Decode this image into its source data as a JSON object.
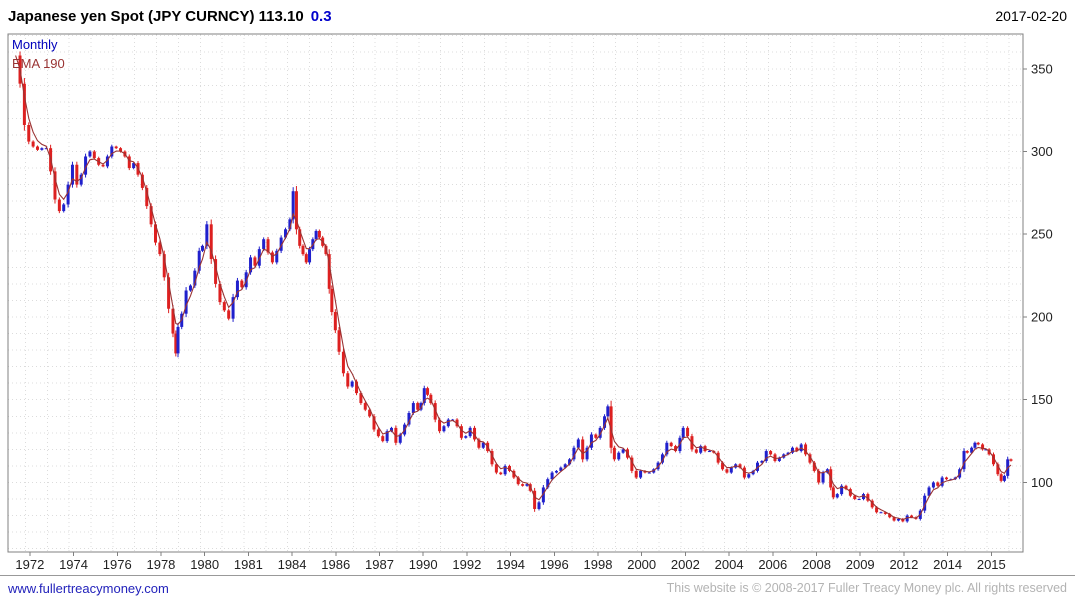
{
  "header": {
    "title": "Japanese yen Spot (JPY CURNCY) 113.10",
    "change": "0.3",
    "date": "2017-02-20"
  },
  "chart": {
    "timeframe_label": "Monthly",
    "ema_label": "EMA 190"
  },
  "footer": {
    "website": "www.fullertreacymoney.com",
    "copyright": "This website is © 2008-2017 Fuller Treacy Money plc. All rights reserved"
  },
  "chart_data": {
    "type": "candlestick",
    "title": "Japanese yen Spot (JPY CURNCY)",
    "timeframe": "Monthly",
    "last_price": 113.1,
    "change": 0.3,
    "as_of_date": "2017-02-20",
    "overlay": "EMA 190",
    "y_ticks": [
      100,
      150,
      200,
      250,
      300,
      350
    ],
    "ylim": [
      58,
      371
    ],
    "xlim_years": [
      1971.2,
      2017.65
    ],
    "x_axis": {
      "first_tick_year": 1972.2,
      "tick_interval_years": 2,
      "labels": [
        "1972",
        "1974",
        "1976",
        "1978",
        "1980",
        "1981",
        "1984",
        "1986",
        "1987",
        "1990",
        "1992",
        "1994",
        "1996",
        "1998",
        "2000",
        "2002",
        "2004",
        "2006",
        "2008",
        "2009",
        "2012",
        "2014",
        "2015"
      ]
    },
    "grid": {
      "h_step": 10,
      "v_step_years": 1
    },
    "colors": {
      "up": "#2020cc",
      "down": "#dd2020",
      "ema": "#993333",
      "border": "#808080",
      "grid": "#dcdcdc",
      "tick_text": "#222222"
    },
    "ema_tau_years": 0.3,
    "series": [
      {
        "name": "JPY spot (yen per USD), monthly",
        "style": "candle",
        "points": [
          [
            1971.55,
            358
          ],
          [
            1971.75,
            341
          ],
          [
            1971.95,
            316
          ],
          [
            1972.15,
            306
          ],
          [
            1972.35,
            303
          ],
          [
            1972.55,
            301
          ],
          [
            1972.75,
            302
          ],
          [
            1972.95,
            302
          ],
          [
            1973.15,
            288
          ],
          [
            1973.35,
            271
          ],
          [
            1973.55,
            264
          ],
          [
            1973.75,
            268
          ],
          [
            1973.95,
            280
          ],
          [
            1974.15,
            292
          ],
          [
            1974.35,
            280
          ],
          [
            1974.55,
            286
          ],
          [
            1974.75,
            297
          ],
          [
            1974.95,
            300
          ],
          [
            1975.15,
            296
          ],
          [
            1975.35,
            292
          ],
          [
            1975.55,
            291
          ],
          [
            1975.75,
            297
          ],
          [
            1975.95,
            303
          ],
          [
            1976.15,
            302
          ],
          [
            1976.35,
            300
          ],
          [
            1976.55,
            297
          ],
          [
            1976.75,
            290
          ],
          [
            1976.95,
            293
          ],
          [
            1977.15,
            286
          ],
          [
            1977.35,
            278
          ],
          [
            1977.55,
            267
          ],
          [
            1977.75,
            256
          ],
          [
            1977.95,
            245
          ],
          [
            1978.15,
            238
          ],
          [
            1978.35,
            224
          ],
          [
            1978.55,
            205
          ],
          [
            1978.75,
            190
          ],
          [
            1978.88,
            178
          ],
          [
            1978.98,
            194
          ],
          [
            1979.15,
            202
          ],
          [
            1979.35,
            216
          ],
          [
            1979.55,
            219
          ],
          [
            1979.75,
            228
          ],
          [
            1979.95,
            240
          ],
          [
            1980.1,
            243
          ],
          [
            1980.3,
            256
          ],
          [
            1980.5,
            235
          ],
          [
            1980.7,
            220
          ],
          [
            1980.9,
            209
          ],
          [
            1981.1,
            204
          ],
          [
            1981.3,
            199
          ],
          [
            1981.5,
            212
          ],
          [
            1981.7,
            222
          ],
          [
            1981.9,
            218
          ],
          [
            1982.1,
            227
          ],
          [
            1982.3,
            236
          ],
          [
            1982.5,
            231
          ],
          [
            1982.7,
            241
          ],
          [
            1982.9,
            247
          ],
          [
            1983.1,
            239
          ],
          [
            1983.3,
            233
          ],
          [
            1983.5,
            240
          ],
          [
            1983.7,
            248
          ],
          [
            1983.9,
            253
          ],
          [
            1984.1,
            259
          ],
          [
            1984.25,
            276
          ],
          [
            1984.4,
            253
          ],
          [
            1984.55,
            243
          ],
          [
            1984.7,
            238
          ],
          [
            1984.85,
            233
          ],
          [
            1985.0,
            241
          ],
          [
            1985.15,
            247
          ],
          [
            1985.3,
            252
          ],
          [
            1985.45,
            248
          ],
          [
            1985.6,
            243
          ],
          [
            1985.75,
            238
          ],
          [
            1985.9,
            217
          ],
          [
            1986.02,
            203
          ],
          [
            1986.18,
            192
          ],
          [
            1986.35,
            179
          ],
          [
            1986.55,
            166
          ],
          [
            1986.75,
            158
          ],
          [
            1986.95,
            161
          ],
          [
            1987.15,
            154
          ],
          [
            1987.35,
            148
          ],
          [
            1987.55,
            144
          ],
          [
            1987.75,
            140
          ],
          [
            1987.95,
            132
          ],
          [
            1988.15,
            128
          ],
          [
            1988.35,
            125
          ],
          [
            1988.55,
            131
          ],
          [
            1988.75,
            133
          ],
          [
            1988.95,
            124
          ],
          [
            1989.15,
            129
          ],
          [
            1989.35,
            135
          ],
          [
            1989.55,
            142
          ],
          [
            1989.75,
            148
          ],
          [
            1989.95,
            144
          ],
          [
            1990.1,
            148
          ],
          [
            1990.25,
            157
          ],
          [
            1990.4,
            153
          ],
          [
            1990.55,
            148
          ],
          [
            1990.75,
            138
          ],
          [
            1990.95,
            131
          ],
          [
            1991.15,
            134
          ],
          [
            1991.35,
            138
          ],
          [
            1991.55,
            138
          ],
          [
            1991.75,
            134
          ],
          [
            1991.95,
            127
          ],
          [
            1992.15,
            128
          ],
          [
            1992.35,
            133
          ],
          [
            1992.55,
            126
          ],
          [
            1992.75,
            121
          ],
          [
            1992.95,
            124
          ],
          [
            1993.15,
            119
          ],
          [
            1993.35,
            111
          ],
          [
            1993.55,
            106
          ],
          [
            1993.75,
            105
          ],
          [
            1993.95,
            110
          ],
          [
            1994.15,
            107
          ],
          [
            1994.35,
            103
          ],
          [
            1994.55,
            99
          ],
          [
            1994.75,
            98
          ],
          [
            1994.95,
            99
          ],
          [
            1995.1,
            95
          ],
          [
            1995.3,
            84
          ],
          [
            1995.5,
            88
          ],
          [
            1995.7,
            97
          ],
          [
            1995.9,
            102
          ],
          [
            1996.1,
            106
          ],
          [
            1996.3,
            107
          ],
          [
            1996.5,
            109
          ],
          [
            1996.7,
            111
          ],
          [
            1996.9,
            114
          ],
          [
            1997.1,
            121
          ],
          [
            1997.3,
            126
          ],
          [
            1997.5,
            114
          ],
          [
            1997.7,
            121
          ],
          [
            1997.9,
            129
          ],
          [
            1998.1,
            127
          ],
          [
            1998.3,
            133
          ],
          [
            1998.5,
            140
          ],
          [
            1998.65,
            146
          ],
          [
            1998.8,
            121
          ],
          [
            1998.95,
            114
          ],
          [
            1999.15,
            118
          ],
          [
            1999.35,
            120
          ],
          [
            1999.55,
            115
          ],
          [
            1999.75,
            107
          ],
          [
            1999.95,
            103
          ],
          [
            2000.15,
            107
          ],
          [
            2000.35,
            106
          ],
          [
            2000.55,
            106
          ],
          [
            2000.75,
            108
          ],
          [
            2000.95,
            112
          ],
          [
            2001.15,
            117
          ],
          [
            2001.35,
            124
          ],
          [
            2001.55,
            122
          ],
          [
            2001.75,
            119
          ],
          [
            2001.95,
            127
          ],
          [
            2002.1,
            133
          ],
          [
            2002.3,
            128
          ],
          [
            2002.5,
            120
          ],
          [
            2002.7,
            118
          ],
          [
            2002.9,
            122
          ],
          [
            2003.1,
            119
          ],
          [
            2003.3,
            119
          ],
          [
            2003.5,
            118
          ],
          [
            2003.7,
            112
          ],
          [
            2003.9,
            108
          ],
          [
            2004.1,
            106
          ],
          [
            2004.3,
            109
          ],
          [
            2004.5,
            111
          ],
          [
            2004.7,
            109
          ],
          [
            2004.9,
            103
          ],
          [
            2005.1,
            105
          ],
          [
            2005.3,
            107
          ],
          [
            2005.5,
            112
          ],
          [
            2005.7,
            113
          ],
          [
            2005.9,
            119
          ],
          [
            2006.1,
            117
          ],
          [
            2006.3,
            113
          ],
          [
            2006.5,
            115
          ],
          [
            2006.7,
            117
          ],
          [
            2006.9,
            118
          ],
          [
            2007.1,
            121
          ],
          [
            2007.3,
            119
          ],
          [
            2007.5,
            123
          ],
          [
            2007.7,
            117
          ],
          [
            2007.9,
            112
          ],
          [
            2008.1,
            107
          ],
          [
            2008.3,
            100
          ],
          [
            2008.5,
            106
          ],
          [
            2008.7,
            108
          ],
          [
            2008.85,
            97
          ],
          [
            2008.97,
            91
          ],
          [
            2009.15,
            93
          ],
          [
            2009.35,
            98
          ],
          [
            2009.55,
            96
          ],
          [
            2009.75,
            92
          ],
          [
            2009.95,
            90
          ],
          [
            2010.15,
            90
          ],
          [
            2010.35,
            93
          ],
          [
            2010.55,
            89
          ],
          [
            2010.75,
            85
          ],
          [
            2010.95,
            82
          ],
          [
            2011.15,
            82
          ],
          [
            2011.35,
            81
          ],
          [
            2011.55,
            79
          ],
          [
            2011.75,
            77
          ],
          [
            2011.95,
            78
          ],
          [
            2012.15,
            76.5
          ],
          [
            2012.35,
            80
          ],
          [
            2012.55,
            79
          ],
          [
            2012.75,
            78
          ],
          [
            2012.95,
            83
          ],
          [
            2013.15,
            92
          ],
          [
            2013.35,
            97
          ],
          [
            2013.55,
            100
          ],
          [
            2013.75,
            98
          ],
          [
            2013.95,
            103
          ],
          [
            2014.15,
            102
          ],
          [
            2014.35,
            102
          ],
          [
            2014.55,
            103
          ],
          [
            2014.75,
            108
          ],
          [
            2014.95,
            119
          ],
          [
            2015.1,
            118
          ],
          [
            2015.3,
            121
          ],
          [
            2015.45,
            124
          ],
          [
            2015.6,
            123
          ],
          [
            2015.8,
            120
          ],
          [
            2015.95,
            120
          ],
          [
            2016.1,
            117
          ],
          [
            2016.3,
            111
          ],
          [
            2016.5,
            105
          ],
          [
            2016.65,
            101
          ],
          [
            2016.8,
            104
          ],
          [
            2016.95,
            114
          ],
          [
            2017.1,
            113.1
          ]
        ]
      },
      {
        "name": "EMA 190",
        "style": "line",
        "derived_from": "JPY spot (yen per USD), monthly"
      }
    ]
  }
}
